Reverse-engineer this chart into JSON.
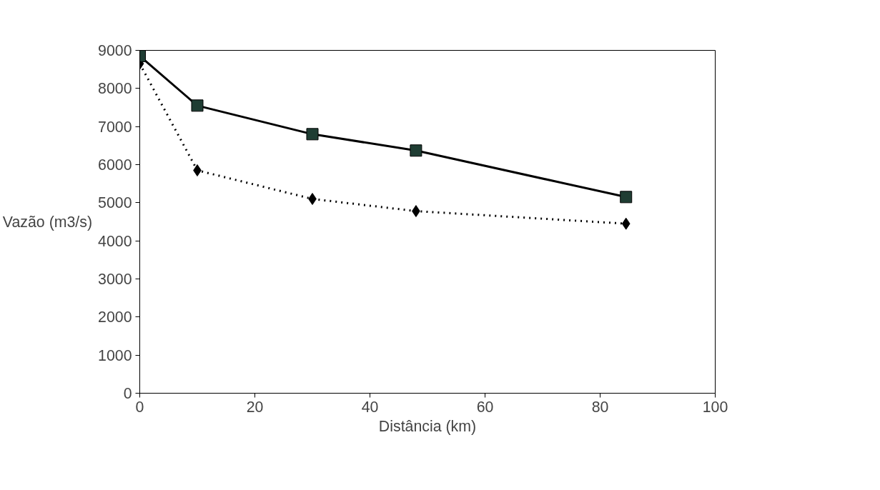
{
  "chart_data": {
    "type": "line",
    "xlabel": "Distância (km)",
    "ylabel": "Vazão (m3/s)",
    "xlim": [
      0,
      100
    ],
    "xticks": [
      0,
      20,
      40,
      60,
      80,
      100
    ],
    "ylim": [
      0,
      9000
    ],
    "yticks": [
      0,
      1000,
      2000,
      3000,
      4000,
      5000,
      6000,
      7000,
      8000,
      9000
    ],
    "grid": false,
    "series": [
      {
        "color": "#000000",
        "marker": "diamond",
        "line_style": "dotted",
        "x": [
          0,
          10,
          30,
          48,
          84.5
        ],
        "values": [
          8650,
          5850,
          5100,
          4780,
          4450
        ]
      },
      {
        "color": "#000000",
        "marker": "square",
        "line_style": "solid",
        "x": [
          0,
          10,
          30,
          48,
          84.5
        ],
        "values": [
          8850,
          7550,
          6800,
          6370,
          5150
        ]
      }
    ]
  }
}
